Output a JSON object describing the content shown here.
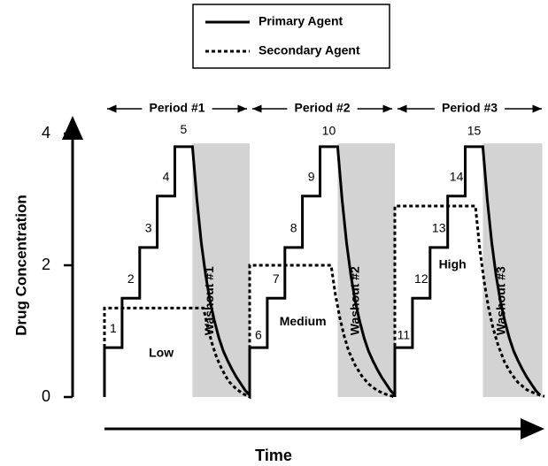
{
  "chart_data": {
    "type": "line",
    "x_label": "Time",
    "y_label": "Drug Concentration",
    "xlim": [
      0,
      100
    ],
    "ylim": [
      0,
      4
    ],
    "yticks": [
      0,
      2,
      4
    ],
    "grid": false,
    "legend": "top",
    "series": [
      {
        "name": "Primary Agent",
        "color": "#000000",
        "style": "solid",
        "x": [
          0,
          0,
          4,
          4,
          8,
          8,
          12,
          12,
          16,
          16,
          20,
          21,
          22,
          23,
          24,
          25,
          26,
          27,
          28,
          29,
          30,
          31,
          32,
          33,
          33,
          33,
          37,
          37,
          41,
          41,
          45,
          45,
          49,
          49,
          53,
          54,
          55,
          56,
          57,
          58,
          59,
          60,
          61,
          62,
          63,
          64,
          65,
          66,
          66,
          66,
          70,
          70,
          74,
          74,
          78,
          78,
          82,
          82,
          86,
          87,
          88,
          89,
          90,
          91,
          92,
          93,
          94,
          95,
          96,
          97,
          98,
          99
        ],
        "values": [
          0,
          0.75,
          0.75,
          1.5,
          1.5,
          2.27,
          2.27,
          3.05,
          3.05,
          3.8,
          3.8,
          3.0,
          2.35,
          1.85,
          1.45,
          1.15,
          0.9,
          0.7,
          0.55,
          0.42,
          0.3,
          0.2,
          0.1,
          0.03,
          0,
          0.75,
          0.75,
          1.5,
          1.5,
          2.27,
          2.27,
          3.05,
          3.05,
          3.8,
          3.8,
          3.0,
          2.35,
          1.85,
          1.45,
          1.15,
          0.9,
          0.7,
          0.55,
          0.42,
          0.3,
          0.2,
          0.1,
          0.03,
          0,
          0.75,
          0.75,
          1.5,
          1.5,
          2.27,
          2.27,
          3.05,
          3.05,
          3.8,
          3.8,
          3.0,
          2.35,
          1.85,
          1.45,
          1.15,
          0.9,
          0.7,
          0.55,
          0.42,
          0.3,
          0.2,
          0.1,
          0.03
        ]
      },
      {
        "name": "Secondary Agent",
        "color": "#000000",
        "style": "dotted",
        "x": [
          0,
          0,
          22.5,
          23.5,
          24.5,
          25.5,
          26.5,
          27.5,
          28.5,
          30,
          31.5,
          33,
          33,
          51.5,
          52.5,
          53.5,
          54.5,
          55.5,
          57,
          58.5,
          60,
          62,
          64,
          66,
          66,
          84.3,
          85.3,
          86.3,
          87.3,
          88.3,
          89.5,
          91,
          92.5,
          94,
          96,
          98,
          100
        ],
        "values": [
          0,
          1.35,
          1.35,
          1.05,
          0.8,
          0.6,
          0.45,
          0.32,
          0.22,
          0.12,
          0.05,
          0,
          2.0,
          2.0,
          1.55,
          1.2,
          0.92,
          0.7,
          0.48,
          0.32,
          0.2,
          0.1,
          0.04,
          0,
          2.9,
          2.9,
          2.25,
          1.75,
          1.35,
          1.05,
          0.78,
          0.52,
          0.35,
          0.22,
          0.11,
          0.05,
          0.01
        ]
      }
    ],
    "bands": [
      {
        "label": "Washout #1",
        "x0": 20,
        "x1": 33,
        "top": 3.85,
        "label_x": 24,
        "label_y": 1.46,
        "color": "#d3d3d3"
      },
      {
        "label": "Washout #2",
        "x0": 53,
        "x1": 66,
        "top": 3.85,
        "label_x": 57.1,
        "label_y": 1.46,
        "color": "#d3d3d3"
      },
      {
        "label": "Washout #3",
        "x0": 86,
        "x1": 99.5,
        "top": 3.85,
        "label_x": 90.3,
        "label_y": 1.46,
        "color": "#d3d3d3"
      }
    ],
    "periods": [
      {
        "label": "Period #1",
        "x0": 0,
        "x1": 33
      },
      {
        "label": "Period #2",
        "x0": 33,
        "x1": 66
      },
      {
        "label": "Period #3",
        "x0": 66,
        "x1": 100
      }
    ],
    "annotations": [
      {
        "text": 1,
        "x": 2,
        "y": 1.03
      },
      {
        "text": 2,
        "x": 6,
        "y": 1.78
      },
      {
        "text": 3,
        "x": 10,
        "y": 2.55
      },
      {
        "text": 4,
        "x": 14,
        "y": 3.33
      },
      {
        "text": 5,
        "x": 18,
        "y": 4.05
      },
      {
        "text": 6,
        "x": 35,
        "y": 0.93
      },
      {
        "text": 7,
        "x": 39,
        "y": 1.78
      },
      {
        "text": 8,
        "x": 43,
        "y": 2.55
      },
      {
        "text": 9,
        "x": 47,
        "y": 3.33
      },
      {
        "text": 10,
        "x": 51,
        "y": 4.03
      },
      {
        "text": 11,
        "x": 68,
        "y": 0.93
      },
      {
        "text": 12,
        "x": 72,
        "y": 1.78
      },
      {
        "text": 13,
        "x": 76,
        "y": 2.55
      },
      {
        "text": 14,
        "x": 80,
        "y": 3.33
      },
      {
        "text": 15,
        "x": 84,
        "y": 4.03
      },
      {
        "text": "Low",
        "x": 12.9,
        "y": 0.66
      },
      {
        "text": "Medium",
        "x": 45.1,
        "y": 1.14
      },
      {
        "text": "High",
        "x": 79.1,
        "y": 2.0
      }
    ]
  }
}
